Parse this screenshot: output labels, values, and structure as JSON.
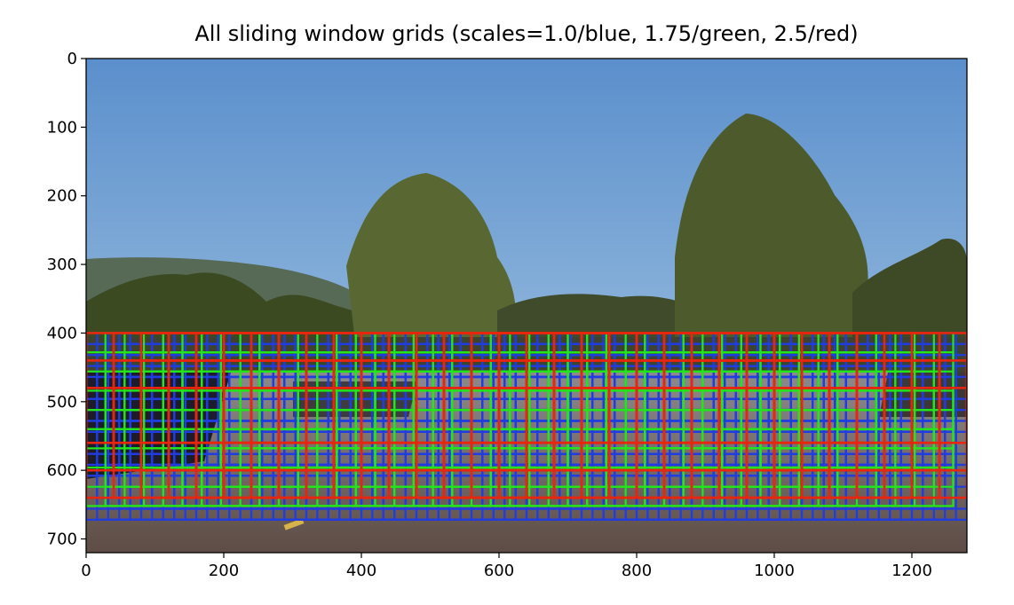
{
  "chart_data": {
    "type": "image",
    "title": "All sliding window grids (scales=1.0/blue, 1.75/green, 2.5/red)",
    "xlabel": "",
    "ylabel": "",
    "xlim": [
      0,
      1280
    ],
    "ylim": [
      720,
      0
    ],
    "x_ticks": [
      0,
      200,
      400,
      600,
      800,
      1000,
      1200
    ],
    "y_ticks": [
      0,
      100,
      200,
      300,
      400,
      500,
      600,
      700
    ],
    "grid": false,
    "image": "road scene: blue sky, trees, hills, road with cars",
    "series": [
      {
        "name": "1.0",
        "color": "#1f3de0",
        "window": 64,
        "step": 16,
        "x_start": 0,
        "x_stop": 1280,
        "y_start": 400,
        "y_stop": 672
      },
      {
        "name": "1.75",
        "color": "#22e61a",
        "window": 112,
        "step": 28,
        "x_start": 0,
        "x_stop": 1280,
        "y_start": 400,
        "y_stop": 672
      },
      {
        "name": "2.5",
        "color": "#e8250d",
        "window": 160,
        "step": 40,
        "x_start": 0,
        "x_stop": 1280,
        "y_start": 400,
        "y_stop": 672
      }
    ]
  }
}
